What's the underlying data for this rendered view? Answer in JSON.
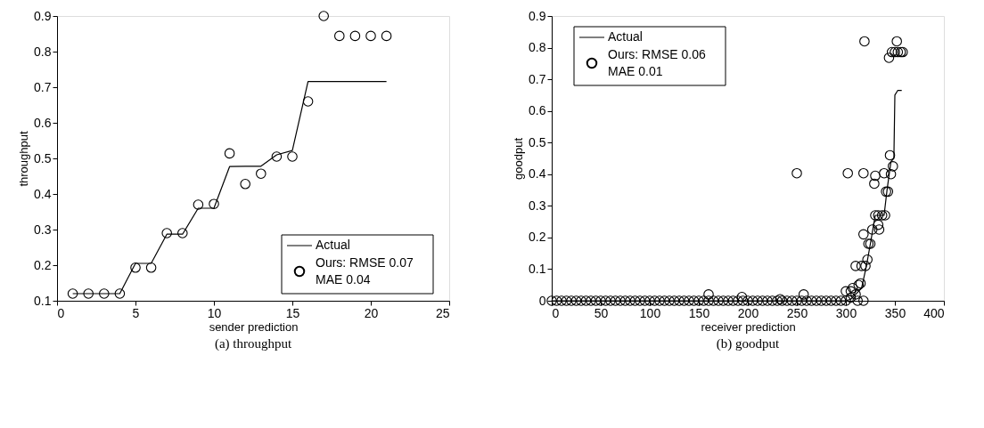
{
  "chart_data": [
    {
      "type": "line",
      "xlabel": "sender prediction",
      "ylabel": "throughput",
      "xlim": [
        0,
        25
      ],
      "xticks": [
        0,
        5,
        10,
        15,
        20,
        25
      ],
      "ylim": [
        0.1,
        0.9
      ],
      "yticks": [
        0.1,
        0.2,
        0.3,
        0.4,
        0.5,
        0.6,
        0.7,
        0.8,
        0.9
      ],
      "grid": false,
      "legend": "bottom right",
      "annotations": [
        "(a)  throughput"
      ],
      "series": [
        {
          "name": "Actual",
          "color": "#000000",
          "marker": "none",
          "line_style": "solid",
          "x": [
            1,
            2,
            3,
            4,
            5,
            6,
            7,
            8,
            9,
            10,
            11,
            12,
            13,
            14,
            15,
            16,
            17,
            18,
            19,
            20,
            21
          ],
          "values": [
            0.12,
            0.12,
            0.12,
            0.12,
            0.205,
            0.205,
            0.287,
            0.287,
            0.36,
            0.36,
            0.477,
            0.478,
            0.478,
            0.51,
            0.522,
            0.716,
            0.716,
            0.716,
            0.716,
            0.716,
            0.716
          ]
        },
        {
          "name": "Ours: RMSE 0.07\nMAE 0.04",
          "type": "scatter",
          "color": "#000000",
          "marker": "circle",
          "x": [
            1,
            2,
            3,
            4,
            5,
            6,
            7,
            8,
            9,
            10,
            11,
            12,
            13,
            14,
            15,
            16,
            17,
            18,
            19,
            20,
            21
          ],
          "values": [
            0.12,
            0.12,
            0.12,
            0.12,
            0.193,
            0.193,
            0.29,
            0.29,
            0.37,
            0.372,
            0.514,
            0.428,
            0.457,
            0.505,
            0.505,
            0.66,
            0.9,
            0.844,
            0.844,
            0.844,
            0.844
          ]
        }
      ]
    },
    {
      "type": "line",
      "xlabel": "receiver prediction",
      "ylabel": "goodput",
      "xlim": [
        0,
        400
      ],
      "xticks": [
        0,
        50,
        100,
        150,
        200,
        250,
        300,
        350,
        400
      ],
      "ylim": [
        0,
        0.9
      ],
      "yticks": [
        0,
        0.1,
        0.2,
        0.3,
        0.4,
        0.5,
        0.6,
        0.7,
        0.8,
        0.9
      ],
      "grid": false,
      "legend": "top left",
      "annotations": [
        "(b)  goodput"
      ],
      "series": [
        {
          "name": "Actual",
          "color": "#000000",
          "marker": "none",
          "line_style": "solid",
          "x": [
            0,
            100,
            200,
            300,
            305,
            310,
            316,
            321,
            325,
            330,
            339,
            342,
            346,
            349,
            350,
            353,
            357
          ],
          "values": [
            0,
            0,
            0,
            0,
            0.005,
            0.02,
            0.04,
            0.11,
            0.18,
            0.27,
            0.27,
            0.35,
            0.44,
            0.45,
            0.65,
            0.665,
            0.665
          ]
        },
        {
          "name": "Ours: RMSE 0.06\nMAE 0.01",
          "type": "scatter",
          "color": "#000000",
          "marker": "circle",
          "x": [
            0,
            5,
            10,
            15,
            20,
            25,
            30,
            35,
            40,
            45,
            50,
            55,
            60,
            65,
            70,
            75,
            80,
            85,
            90,
            95,
            100,
            105,
            110,
            115,
            120,
            125,
            130,
            135,
            140,
            145,
            150,
            155,
            160,
            165,
            170,
            175,
            180,
            185,
            190,
            195,
            200,
            205,
            210,
            215,
            220,
            225,
            230,
            235,
            240,
            245,
            250,
            255,
            260,
            265,
            270,
            275,
            280,
            285,
            290,
            295,
            300,
            160,
            194,
            233,
            257,
            250,
            302,
            318,
            319,
            352,
            344,
            347,
            350,
            353,
            356,
            358,
            300,
            305,
            307,
            310,
            313,
            315,
            310,
            316,
            320,
            322,
            323,
            325,
            318,
            327,
            334,
            333,
            330,
            333,
            337,
            340,
            341,
            343,
            330,
            329,
            339,
            346,
            348,
            345,
            305,
            312,
            318
          ],
          "values": [
            0,
            0,
            0,
            0,
            0,
            0,
            0,
            0,
            0,
            0,
            0,
            0,
            0,
            0,
            0,
            0,
            0,
            0,
            0,
            0,
            0,
            0,
            0,
            0,
            0,
            0,
            0,
            0,
            0,
            0,
            0,
            0,
            0,
            0,
            0,
            0,
            0,
            0,
            0,
            0,
            0,
            0,
            0,
            0,
            0,
            0,
            0,
            0,
            0,
            0,
            0,
            0,
            0,
            0,
            0,
            0,
            0,
            0,
            0,
            0,
            0,
            0.02,
            0.012,
            0.005,
            0.02,
            0.403,
            0.403,
            0.403,
            0.82,
            0.82,
            0.768,
            0.786,
            0.786,
            0.786,
            0.786,
            0.786,
            0.03,
            0.03,
            0.04,
            0.02,
            0.05,
            0.055,
            0.11,
            0.11,
            0.11,
            0.13,
            0.18,
            0.18,
            0.21,
            0.225,
            0.225,
            0.24,
            0.27,
            0.27,
            0.27,
            0.27,
            0.345,
            0.345,
            0.395,
            0.37,
            0.403,
            0.4,
            0.425,
            0.46,
            0.01,
            0,
            0
          ]
        }
      ]
    }
  ]
}
